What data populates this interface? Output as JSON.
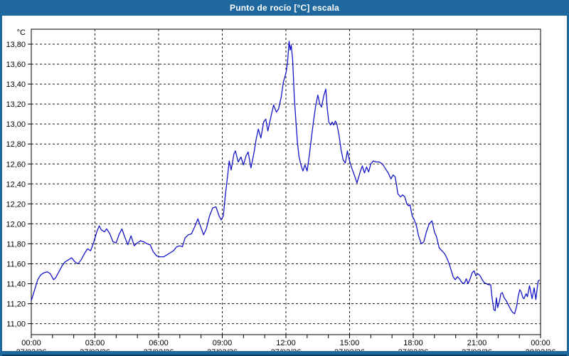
{
  "window": {
    "title": "Punto de rocío [°C] escala"
  },
  "colors": {
    "frame_blue": "#1f689e",
    "frame_dark_edge": "#0c3c62",
    "line_blue": "#1616c8",
    "grid_black": "#1a1a1a",
    "plot_background": "#ffffff",
    "title_text": "#ffffff",
    "axis_text": "#000000"
  },
  "chart_data": {
    "type": "line",
    "title": "Punto de rocío [°C] escala",
    "ylabel": "°C",
    "xlabel": "",
    "legend": "none",
    "grid": "dashed",
    "xlim_hours": [
      0,
      24
    ],
    "ylim": [
      10.89,
      13.95
    ],
    "y_ticks": [
      {
        "v": 11.0,
        "label": "11,00"
      },
      {
        "v": 11.2,
        "label": "11,20"
      },
      {
        "v": 11.4,
        "label": "11,40"
      },
      {
        "v": 11.6,
        "label": "11,60"
      },
      {
        "v": 11.8,
        "label": "11,80"
      },
      {
        "v": 12.0,
        "label": "12,00"
      },
      {
        "v": 12.2,
        "label": "12,20"
      },
      {
        "v": 12.4,
        "label": "12,40"
      },
      {
        "v": 12.6,
        "label": "12,60"
      },
      {
        "v": 12.8,
        "label": "12,80"
      },
      {
        "v": 13.0,
        "label": "13,00"
      },
      {
        "v": 13.2,
        "label": "13,20"
      },
      {
        "v": 13.4,
        "label": "13,40"
      },
      {
        "v": 13.6,
        "label": "13,60"
      },
      {
        "v": 13.8,
        "label": "13,80"
      }
    ],
    "x_ticks": [
      {
        "t": 0,
        "time": "00:00",
        "date": "27/02/26"
      },
      {
        "t": 3,
        "time": "03:00",
        "date": "27/02/26"
      },
      {
        "t": 6,
        "time": "06:00",
        "date": "27/02/26"
      },
      {
        "t": 9,
        "time": "09:00",
        "date": "27/02/26"
      },
      {
        "t": 12,
        "time": "12:00",
        "date": "27/02/26"
      },
      {
        "t": 15,
        "time": "15:00",
        "date": "27/02/26"
      },
      {
        "t": 18,
        "time": "18:00",
        "date": "27/02/26"
      },
      {
        "t": 21,
        "time": "21:00",
        "date": "27/02/26"
      },
      {
        "t": 24,
        "time": "00:00",
        "date": "28/02/26"
      }
    ],
    "minor_x_tick_interval_hours": 1,
    "series": [
      {
        "name": "Punto de rocío [°C]",
        "color": "#1616c8",
        "points": [
          [
            0.0,
            11.23
          ],
          [
            0.1,
            11.3
          ],
          [
            0.2,
            11.37
          ],
          [
            0.3,
            11.44
          ],
          [
            0.45,
            11.49
          ],
          [
            0.6,
            11.51
          ],
          [
            0.75,
            11.52
          ],
          [
            0.9,
            11.5
          ],
          [
            1.05,
            11.44
          ],
          [
            1.15,
            11.46
          ],
          [
            1.3,
            11.52
          ],
          [
            1.45,
            11.58
          ],
          [
            1.6,
            11.62
          ],
          [
            1.75,
            11.64
          ],
          [
            1.9,
            11.66
          ],
          [
            2.05,
            11.62
          ],
          [
            2.2,
            11.6
          ],
          [
            2.35,
            11.64
          ],
          [
            2.5,
            11.7
          ],
          [
            2.65,
            11.75
          ],
          [
            2.8,
            11.73
          ],
          [
            2.95,
            11.82
          ],
          [
            3.1,
            11.93
          ],
          [
            3.2,
            11.98
          ],
          [
            3.3,
            11.94
          ],
          [
            3.45,
            11.92
          ],
          [
            3.55,
            11.95
          ],
          [
            3.7,
            11.9
          ],
          [
            3.85,
            11.82
          ],
          [
            4.0,
            11.81
          ],
          [
            4.15,
            11.9
          ],
          [
            4.27,
            11.95
          ],
          [
            4.4,
            11.87
          ],
          [
            4.55,
            11.79
          ],
          [
            4.7,
            11.88
          ],
          [
            4.85,
            11.78
          ],
          [
            5.0,
            11.81
          ],
          [
            5.15,
            11.83
          ],
          [
            5.3,
            11.82
          ],
          [
            5.45,
            11.8
          ],
          [
            5.6,
            11.79
          ],
          [
            5.75,
            11.72
          ],
          [
            5.9,
            11.68
          ],
          [
            6.05,
            11.67
          ],
          [
            6.25,
            11.67
          ],
          [
            6.4,
            11.69
          ],
          [
            6.55,
            11.71
          ],
          [
            6.7,
            11.73
          ],
          [
            6.85,
            11.77
          ],
          [
            7.0,
            11.78
          ],
          [
            7.12,
            11.77
          ],
          [
            7.25,
            11.86
          ],
          [
            7.4,
            11.89
          ],
          [
            7.55,
            11.9
          ],
          [
            7.7,
            11.97
          ],
          [
            7.85,
            12.05
          ],
          [
            8.0,
            11.96
          ],
          [
            8.12,
            11.89
          ],
          [
            8.25,
            11.95
          ],
          [
            8.4,
            12.08
          ],
          [
            8.55,
            12.16
          ],
          [
            8.7,
            12.17
          ],
          [
            8.85,
            12.08
          ],
          [
            8.95,
            12.04
          ],
          [
            9.05,
            12.08
          ],
          [
            9.15,
            12.3
          ],
          [
            9.25,
            12.48
          ],
          [
            9.33,
            12.63
          ],
          [
            9.42,
            12.54
          ],
          [
            9.55,
            12.7
          ],
          [
            9.62,
            12.73
          ],
          [
            9.75,
            12.62
          ],
          [
            9.88,
            12.67
          ],
          [
            10.0,
            12.59
          ],
          [
            10.12,
            12.68
          ],
          [
            10.22,
            12.72
          ],
          [
            10.35,
            12.56
          ],
          [
            10.5,
            12.72
          ],
          [
            10.6,
            12.85
          ],
          [
            10.7,
            12.95
          ],
          [
            10.82,
            12.86
          ],
          [
            10.95,
            13.02
          ],
          [
            11.05,
            13.05
          ],
          [
            11.15,
            12.93
          ],
          [
            11.3,
            13.08
          ],
          [
            11.42,
            13.19
          ],
          [
            11.55,
            13.12
          ],
          [
            11.65,
            13.15
          ],
          [
            11.78,
            13.27
          ],
          [
            11.88,
            13.42
          ],
          [
            11.95,
            13.47
          ],
          [
            12.02,
            13.53
          ],
          [
            12.08,
            13.63
          ],
          [
            12.15,
            13.83
          ],
          [
            12.2,
            13.74
          ],
          [
            12.25,
            13.79
          ],
          [
            12.32,
            13.64
          ],
          [
            12.4,
            13.25
          ],
          [
            12.48,
            13.0
          ],
          [
            12.55,
            12.8
          ],
          [
            12.62,
            12.67
          ],
          [
            12.72,
            12.58
          ],
          [
            12.8,
            12.53
          ],
          [
            12.9,
            12.59
          ],
          [
            13.0,
            12.53
          ],
          [
            13.1,
            12.68
          ],
          [
            13.2,
            12.86
          ],
          [
            13.3,
            13.03
          ],
          [
            13.4,
            13.18
          ],
          [
            13.5,
            13.29
          ],
          [
            13.6,
            13.2
          ],
          [
            13.68,
            13.17
          ],
          [
            13.78,
            13.28
          ],
          [
            13.88,
            13.35
          ],
          [
            13.95,
            13.15
          ],
          [
            14.02,
            13.02
          ],
          [
            14.1,
            12.99
          ],
          [
            14.18,
            13.02
          ],
          [
            14.25,
            12.99
          ],
          [
            14.33,
            13.03
          ],
          [
            14.4,
            13.0
          ],
          [
            14.5,
            12.89
          ],
          [
            14.6,
            12.74
          ],
          [
            14.7,
            12.64
          ],
          [
            14.8,
            12.61
          ],
          [
            14.9,
            12.73
          ],
          [
            15.0,
            12.63
          ],
          [
            15.1,
            12.56
          ],
          [
            15.22,
            12.49
          ],
          [
            15.35,
            12.41
          ],
          [
            15.5,
            12.52
          ],
          [
            15.6,
            12.58
          ],
          [
            15.7,
            12.51
          ],
          [
            15.8,
            12.57
          ],
          [
            15.9,
            12.52
          ],
          [
            16.0,
            12.6
          ],
          [
            16.12,
            12.63
          ],
          [
            16.25,
            12.62
          ],
          [
            16.4,
            12.62
          ],
          [
            16.55,
            12.6
          ],
          [
            16.7,
            12.55
          ],
          [
            16.82,
            12.51
          ],
          [
            16.95,
            12.45
          ],
          [
            17.05,
            12.49
          ],
          [
            17.15,
            12.47
          ],
          [
            17.28,
            12.3
          ],
          [
            17.4,
            12.27
          ],
          [
            17.5,
            12.29
          ],
          [
            17.6,
            12.27
          ],
          [
            17.7,
            12.2
          ],
          [
            17.78,
            12.18
          ],
          [
            17.85,
            12.19
          ],
          [
            17.95,
            12.08
          ],
          [
            18.05,
            12.04
          ],
          [
            18.15,
            11.98
          ],
          [
            18.25,
            11.88
          ],
          [
            18.38,
            11.8
          ],
          [
            18.5,
            11.82
          ],
          [
            18.62,
            11.92
          ],
          [
            18.75,
            12.0
          ],
          [
            18.88,
            12.03
          ],
          [
            19.0,
            11.92
          ],
          [
            19.1,
            11.87
          ],
          [
            19.22,
            11.76
          ],
          [
            19.35,
            11.73
          ],
          [
            19.48,
            11.7
          ],
          [
            19.58,
            11.66
          ],
          [
            19.68,
            11.61
          ],
          [
            19.78,
            11.54
          ],
          [
            19.88,
            11.47
          ],
          [
            19.98,
            11.44
          ],
          [
            20.08,
            11.47
          ],
          [
            20.18,
            11.45
          ],
          [
            20.3,
            11.41
          ],
          [
            20.4,
            11.4
          ],
          [
            20.5,
            11.45
          ],
          [
            20.58,
            11.4
          ],
          [
            20.68,
            11.45
          ],
          [
            20.78,
            11.51
          ],
          [
            20.87,
            11.53
          ],
          [
            20.95,
            11.48
          ],
          [
            21.05,
            11.5
          ],
          [
            21.15,
            11.48
          ],
          [
            21.25,
            11.44
          ],
          [
            21.35,
            11.41
          ],
          [
            21.45,
            11.4
          ],
          [
            21.55,
            11.39
          ],
          [
            21.65,
            11.39
          ],
          [
            21.72,
            11.25
          ],
          [
            21.8,
            11.14
          ],
          [
            21.86,
            11.13
          ],
          [
            21.92,
            11.26
          ],
          [
            21.98,
            11.16
          ],
          [
            22.06,
            11.22
          ],
          [
            22.13,
            11.3
          ],
          [
            22.2,
            11.31
          ],
          [
            22.28,
            11.26
          ],
          [
            22.38,
            11.23
          ],
          [
            22.5,
            11.18
          ],
          [
            22.6,
            11.14
          ],
          [
            22.7,
            11.11
          ],
          [
            22.78,
            11.1
          ],
          [
            22.88,
            11.18
          ],
          [
            22.95,
            11.28
          ],
          [
            23.02,
            11.34
          ],
          [
            23.08,
            11.32
          ],
          [
            23.17,
            11.26
          ],
          [
            23.22,
            11.25
          ],
          [
            23.32,
            11.3
          ],
          [
            23.38,
            11.27
          ],
          [
            23.48,
            11.38
          ],
          [
            23.6,
            11.25
          ],
          [
            23.7,
            11.36
          ],
          [
            23.78,
            11.24
          ],
          [
            23.88,
            11.42
          ],
          [
            23.95,
            11.44
          ]
        ]
      }
    ]
  }
}
